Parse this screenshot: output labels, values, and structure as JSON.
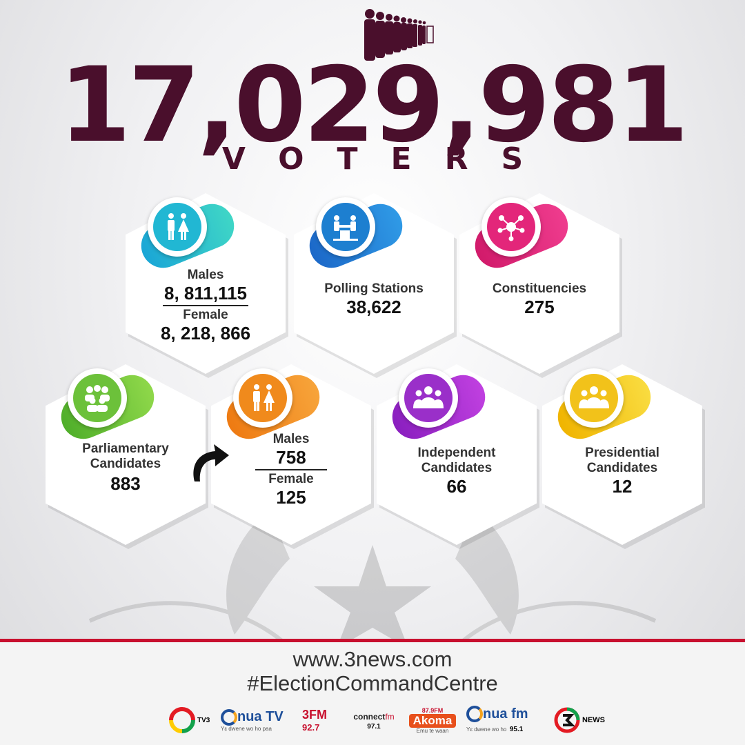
{
  "header": {
    "total": "17,029,981",
    "subtitle": "VOTERS"
  },
  "cards": {
    "voters_gender": {
      "male_label": "Males",
      "male_value": "8, 811,115",
      "female_label": "Female",
      "female_value": "8, 218, 866",
      "color": "#2fbfd0"
    },
    "polling": {
      "label": "Polling Stations",
      "value": "38,622",
      "color": "#1d7fd0"
    },
    "constituencies": {
      "label": "Constituencies",
      "value": "275",
      "color": "#e3267a"
    },
    "parliamentary": {
      "label_line1": "Parliamentary",
      "label_line2": "Candidates",
      "value": "883",
      "color": "#6cc13a"
    },
    "parl_gender": {
      "male_label": "Males",
      "male_value": "758",
      "female_label": "Female",
      "female_value": "125",
      "color": "#f08a1c"
    },
    "independent": {
      "label_line1": "Independent",
      "label_line2": "Candidates",
      "value": "66",
      "color": "#9a2fc9"
    },
    "presidential": {
      "label_line1": "Presidential",
      "label_line2": "Candidates",
      "value": "12",
      "color": "#f2c21a"
    }
  },
  "footer": {
    "website": "www.3news.com",
    "hashtag": "#ElectionCommandCentre",
    "logos": {
      "tv3": "TV3",
      "onuatv": "nua TV",
      "onuatv_tag": "Yɛ dwene wo ho paa",
      "threefm": "3FM",
      "threefm_freq": "92.7",
      "connect": "connect",
      "connect_fm": "fm",
      "connect_freq": "97.1",
      "akoma": "Akoma",
      "akoma_freq": "87.9FM",
      "akoma_tag": "Emu te waan",
      "onuafm": "nua fm",
      "onuafm_tag": "Yɛ dwene wo ho",
      "onuafm_freq": "95.1",
      "threenews": "NEWS"
    }
  }
}
